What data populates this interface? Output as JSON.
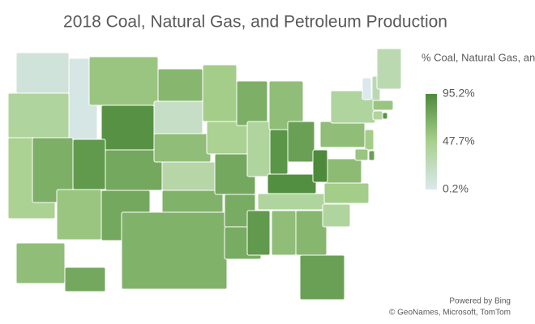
{
  "chart_data": {
    "type": "choropleth",
    "title": "2018 Coal, Natural Gas, and Petroleum Production",
    "legend_title": "% Coal, Natural Gas, and Petroleum",
    "values": [
      10,
      40,
      45,
      5,
      70,
      55,
      90,
      85,
      55,
      75,
      75,
      65,
      20,
      60,
      35,
      68,
      68,
      50,
      45,
      75,
      72,
      72,
      70,
      40,
      60,
      88,
      80,
      92,
      40,
      85,
      60,
      65,
      80,
      40,
      50,
      62,
      95,
      60,
      40,
      50,
      80,
      55,
      40,
      90,
      55,
      0.2,
      30,
      30,
      60,
      75
    ],
    "clim": [
      0.2,
      95.2
    ],
    "colors": [
      "#dbe8ee",
      "#a8d08d",
      "#4d8a3b"
    ],
    "legend_ticks": [
      {
        "value": 95.2,
        "label": "95.2%"
      },
      {
        "value": 47.7,
        "label": "47.7%"
      },
      {
        "value": 0.2,
        "label": "0.2%"
      }
    ],
    "attribution": [
      "Powered by Bing",
      "© GeoNames, Microsoft, TomTom"
    ]
  }
}
